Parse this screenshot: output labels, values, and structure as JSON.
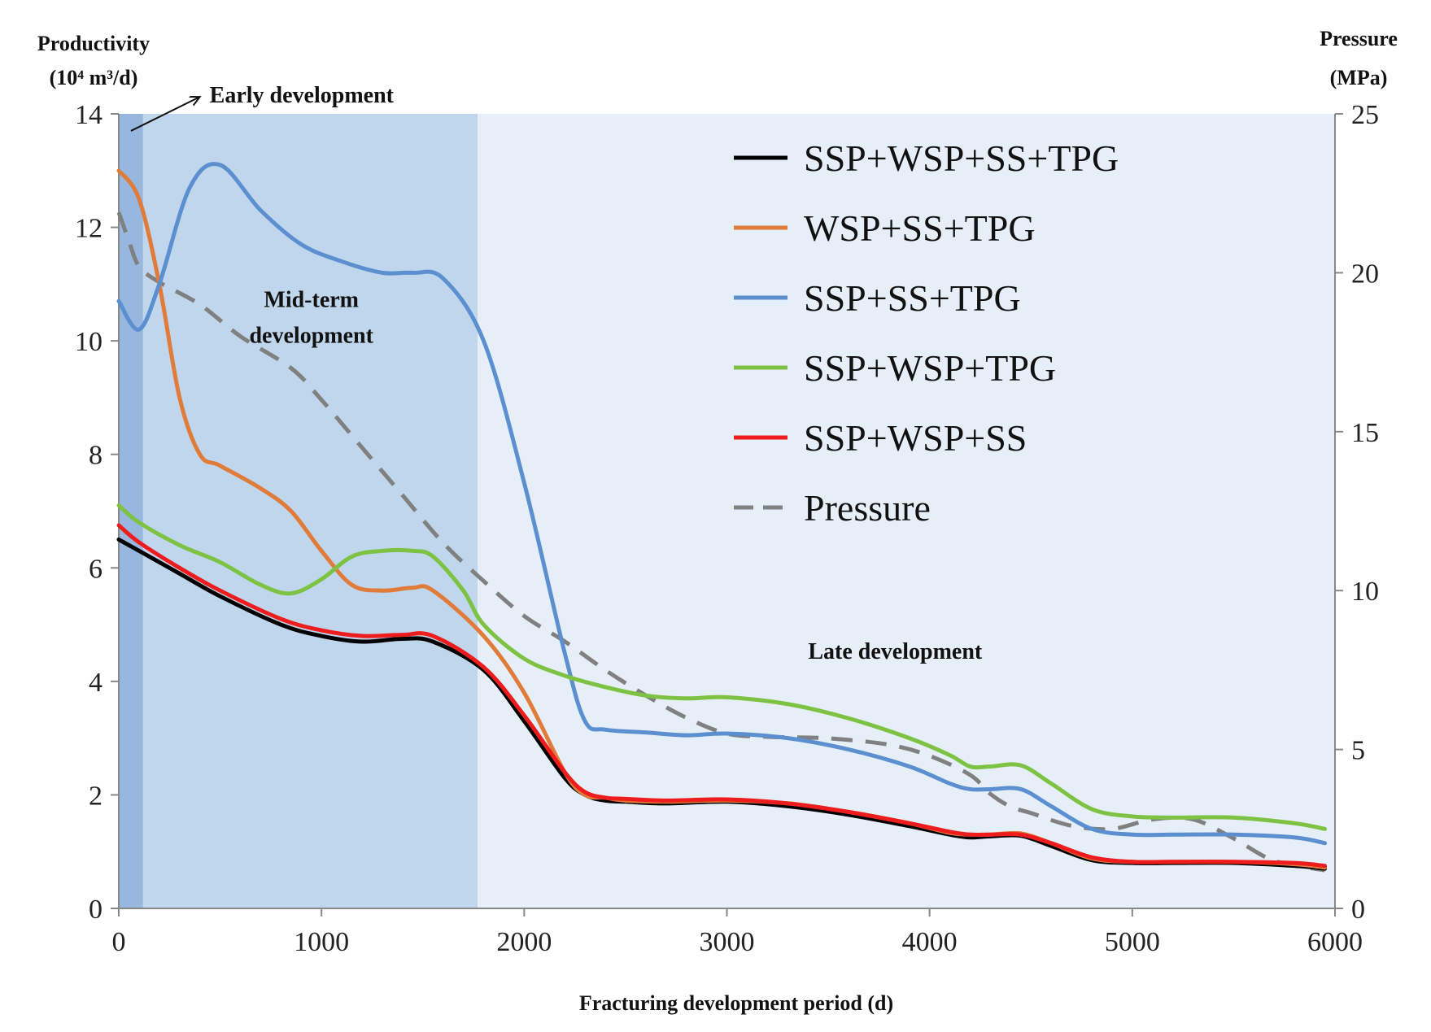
{
  "chart_data": {
    "type": "line",
    "xlabel": "Fracturing development period (d)",
    "ylabel_left": [
      "Productivity",
      "(10⁴ m³/d)"
    ],
    "ylabel_right": [
      "Pressure",
      "(MPa)"
    ],
    "xlim": [
      0,
      6000
    ],
    "ylim_left": [
      0,
      14
    ],
    "ylim_right": [
      0,
      25
    ],
    "xticks": [
      0,
      1000,
      2000,
      3000,
      4000,
      5000,
      6000
    ],
    "yticks_left": [
      0,
      2,
      4,
      6,
      8,
      10,
      12,
      14
    ],
    "yticks_right": [
      0,
      5,
      10,
      15,
      20,
      25
    ],
    "phases": [
      {
        "label": "Early development",
        "x_start": 0,
        "x_end": 120,
        "color": "#98b7de"
      },
      {
        "label": "Mid-term development",
        "label_lines": [
          "Mid-term",
          "development"
        ],
        "x_start": 120,
        "x_end": 1770,
        "color": "#c0d6ec"
      },
      {
        "label": "Late development",
        "x_start": 1770,
        "x_end": 6000,
        "color": "#e6eff8"
      }
    ],
    "series": [
      {
        "name": "SSP+WSP+SS+TPG",
        "axis": "left",
        "color": "#000000",
        "dash": false,
        "x": [
          0,
          100,
          300,
          500,
          800,
          1000,
          1200,
          1400,
          1550,
          1800,
          2000,
          2200,
          2300,
          2400,
          2500,
          2700,
          3000,
          3300,
          3600,
          3900,
          4100,
          4200,
          4300,
          4450,
          4600,
          4800,
          5000,
          5200,
          5500,
          5800,
          5950
        ],
        "values": [
          6.5,
          6.3,
          5.9,
          5.5,
          5.0,
          4.8,
          4.7,
          4.75,
          4.7,
          4.2,
          3.3,
          2.3,
          2.0,
          1.9,
          1.88,
          1.85,
          1.88,
          1.8,
          1.65,
          1.45,
          1.3,
          1.25,
          1.27,
          1.28,
          1.1,
          0.85,
          0.8,
          0.8,
          0.8,
          0.75,
          0.7
        ]
      },
      {
        "name": "WSP+SS+TPG",
        "axis": "left",
        "color": "#e07b39",
        "dash": false,
        "x": [
          0,
          100,
          200,
          300,
          400,
          500,
          700,
          850,
          1000,
          1150,
          1300,
          1450,
          1550,
          1800,
          2000,
          2200,
          2300,
          2400,
          2500,
          2700,
          3000,
          3300,
          3600,
          3900,
          4100,
          4200,
          4300,
          4450,
          4600,
          4800,
          5000,
          5200,
          5500,
          5800,
          5950
        ],
        "values": [
          13.0,
          12.5,
          11.0,
          9.0,
          8.0,
          7.8,
          7.4,
          7.0,
          6.3,
          5.7,
          5.6,
          5.65,
          5.6,
          4.8,
          3.8,
          2.4,
          2.0,
          1.95,
          1.9,
          1.88,
          1.9,
          1.85,
          1.7,
          1.5,
          1.33,
          1.3,
          1.3,
          1.32,
          1.15,
          0.88,
          0.82,
          0.82,
          0.82,
          0.78,
          0.72
        ]
      },
      {
        "name": "SSP+SS+TPG",
        "axis": "left",
        "color": "#5b8fcf",
        "dash": false,
        "x": [
          0,
          100,
          200,
          350,
          500,
          700,
          900,
          1100,
          1300,
          1450,
          1600,
          1800,
          2000,
          2200,
          2300,
          2400,
          2600,
          2800,
          3000,
          3300,
          3600,
          3900,
          4100,
          4200,
          4300,
          4450,
          4600,
          4800,
          5000,
          5200,
          5500,
          5800,
          5950
        ],
        "values": [
          10.7,
          10.2,
          11.0,
          12.7,
          13.1,
          12.3,
          11.7,
          11.4,
          11.2,
          11.2,
          11.1,
          10.0,
          7.5,
          4.5,
          3.3,
          3.15,
          3.1,
          3.05,
          3.08,
          3.0,
          2.8,
          2.5,
          2.2,
          2.1,
          2.1,
          2.1,
          1.8,
          1.4,
          1.3,
          1.3,
          1.3,
          1.25,
          1.15
        ]
      },
      {
        "name": "SSP+WSP+TPG",
        "axis": "left",
        "color": "#7dc242",
        "dash": false,
        "x": [
          0,
          100,
          300,
          500,
          700,
          850,
          1000,
          1150,
          1300,
          1450,
          1550,
          1700,
          1800,
          2000,
          2200,
          2400,
          2600,
          2800,
          3000,
          3300,
          3600,
          3900,
          4100,
          4200,
          4300,
          4450,
          4600,
          4800,
          5000,
          5200,
          5500,
          5800,
          5950
        ],
        "values": [
          7.1,
          6.8,
          6.4,
          6.1,
          5.7,
          5.55,
          5.8,
          6.2,
          6.3,
          6.3,
          6.2,
          5.6,
          5.0,
          4.4,
          4.1,
          3.9,
          3.75,
          3.7,
          3.72,
          3.6,
          3.35,
          3.0,
          2.7,
          2.5,
          2.5,
          2.52,
          2.2,
          1.75,
          1.62,
          1.6,
          1.6,
          1.5,
          1.4
        ]
      },
      {
        "name": "SSP+WSP+SS",
        "axis": "left",
        "color": "#ee1c1c",
        "dash": false,
        "x": [
          0,
          100,
          300,
          500,
          800,
          1000,
          1200,
          1400,
          1550,
          1800,
          2000,
          2200,
          2300,
          2400,
          2500,
          2700,
          3000,
          3300,
          3600,
          3900,
          4100,
          4200,
          4300,
          4450,
          4600,
          4800,
          5000,
          5200,
          5500,
          5800,
          5950
        ],
        "values": [
          6.75,
          6.45,
          6.0,
          5.6,
          5.1,
          4.9,
          4.8,
          4.82,
          4.8,
          4.25,
          3.4,
          2.4,
          2.05,
          1.95,
          1.93,
          1.9,
          1.92,
          1.85,
          1.7,
          1.5,
          1.35,
          1.3,
          1.3,
          1.3,
          1.15,
          0.9,
          0.82,
          0.82,
          0.82,
          0.8,
          0.75
        ]
      },
      {
        "name": "Pressure",
        "axis": "right",
        "color": "#808080",
        "dash": true,
        "x": [
          0,
          50,
          100,
          200,
          400,
          600,
          850,
          1000,
          1200,
          1400,
          1600,
          1800,
          2000,
          2200,
          2400,
          2600,
          2800,
          3000,
          3200,
          3500,
          3800,
          4000,
          4200,
          4300,
          4400,
          4500,
          4700,
          4900,
          5100,
          5300,
          5500,
          5700,
          5950
        ],
        "values": [
          21.9,
          21.0,
          20.2,
          19.7,
          19.0,
          18.0,
          17.0,
          16.0,
          14.5,
          13.0,
          11.5,
          10.3,
          9.2,
          8.4,
          7.5,
          6.7,
          6.0,
          5.5,
          5.4,
          5.35,
          5.15,
          4.8,
          4.2,
          3.6,
          3.2,
          3.0,
          2.6,
          2.5,
          2.8,
          2.8,
          2.2,
          1.5,
          1.2
        ]
      }
    ],
    "annotations": [
      {
        "text": "Early development",
        "x": 420,
        "y_left": 14.4,
        "arrow_from": [
          60,
          13.7
        ],
        "arrow_to": [
          400,
          14.3
        ]
      },
      {
        "text": "Mid-term development",
        "lines": [
          "Mid-term",
          "development"
        ],
        "x": 950,
        "y_left": 10.6
      },
      {
        "text": "Late development",
        "x": 3830,
        "y_left": 4.4
      }
    ],
    "legend": {
      "position": "top-right"
    }
  }
}
